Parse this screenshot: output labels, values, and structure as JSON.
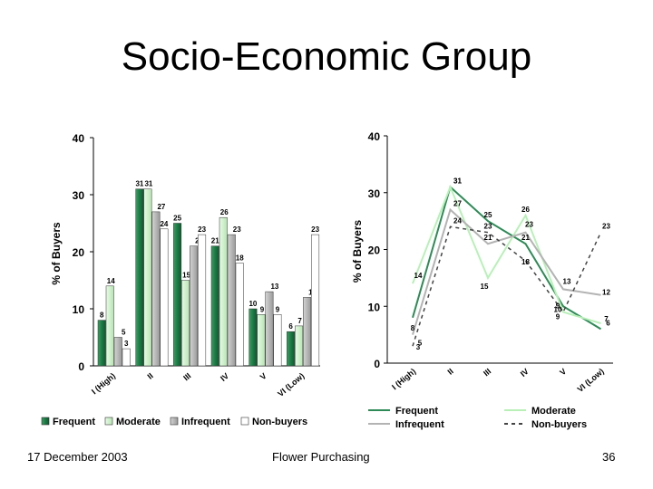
{
  "title": "Socio-Economic Group",
  "footer": {
    "date": "17 December 2003",
    "subject": "Flower Purchasing",
    "page": "36"
  },
  "colors": {
    "frequent": "#1d7a45",
    "moderate": "#c9f0c6",
    "infrequent": "#b5b5b5",
    "nonbuyers": "#ffffff",
    "line_frequent": "#2e8b57",
    "line_moderate": "#b8f0b8",
    "line_infrequent": "#b3b3b3",
    "line_nonbuyers": "#444444"
  },
  "chart_data": [
    {
      "type": "bar",
      "ylabel": "% of Buyers",
      "ylim": [
        0,
        40
      ],
      "yticks": [
        0,
        10,
        20,
        30,
        40
      ],
      "categories": [
        "I (High)",
        "II",
        "III",
        "IV",
        "V",
        "VI (Low)"
      ],
      "series": [
        {
          "name": "Frequent",
          "values": [
            8,
            31,
            25,
            21,
            10,
            6
          ]
        },
        {
          "name": "Moderate",
          "values": [
            14,
            31,
            15,
            26,
            9,
            7
          ]
        },
        {
          "name": "Infrequent",
          "values": [
            5,
            27,
            21,
            23,
            13,
            12
          ]
        },
        {
          "name": "Non-buyers",
          "values": [
            3,
            24,
            23,
            18,
            9,
            23
          ]
        }
      ],
      "legend_position": "bottom"
    },
    {
      "type": "line",
      "ylabel": "% of Buyers",
      "ylim": [
        0,
        40
      ],
      "yticks": [
        0,
        10,
        20,
        30,
        40
      ],
      "categories": [
        "I (High)",
        "II",
        "III",
        "IV",
        "V",
        "VI (Low)"
      ],
      "series": [
        {
          "name": "Frequent",
          "values": [
            8,
            31,
            25,
            21,
            10,
            6
          ]
        },
        {
          "name": "Moderate",
          "values": [
            14,
            31,
            15,
            26,
            9,
            7
          ]
        },
        {
          "name": "Infrequent",
          "values": [
            5,
            27,
            21,
            23,
            13,
            12
          ]
        },
        {
          "name": "Non-buyers",
          "values": [
            3,
            24,
            23,
            18,
            9,
            23
          ]
        }
      ],
      "legend_position": "bottom"
    }
  ]
}
